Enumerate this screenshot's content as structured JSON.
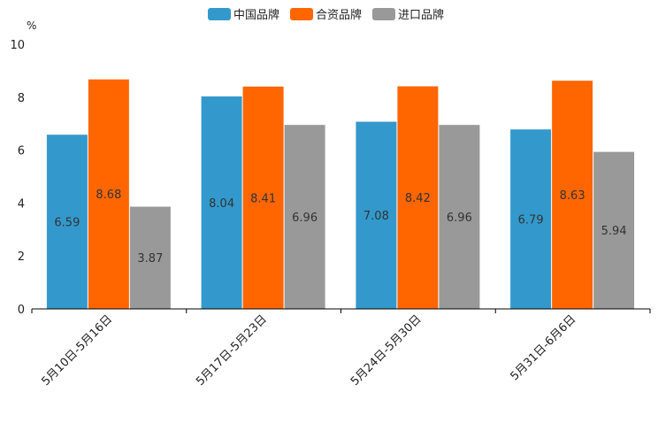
{
  "chart_data": {
    "type": "bar",
    "title": "",
    "ylabel": "%",
    "xlabel": "",
    "ylim": [
      0,
      10
    ],
    "yticks": [
      0,
      2,
      4,
      6,
      8,
      10
    ],
    "legend_position": "top-center",
    "categories": [
      "5月10日-5月16日",
      "5月17日-5月23日",
      "5月24日-5月30日",
      "5月31日-6月6日"
    ],
    "series": [
      {
        "name": "中国品牌",
        "color": "#3399CC",
        "values": [
          6.59,
          8.04,
          7.08,
          6.79
        ],
        "labels": [
          "6.59",
          "8.04",
          "7.08",
          "6.79"
        ]
      },
      {
        "name": "合资品牌",
        "color": "#FF6600",
        "values": [
          8.68,
          8.41,
          8.42,
          8.63
        ],
        "labels": [
          "8.68",
          "8.41",
          "8.42",
          "8.63"
        ]
      },
      {
        "name": "进口品牌",
        "color": "#999999",
        "values": [
          3.87,
          6.96,
          6.96,
          5.94
        ],
        "labels": [
          "3.87",
          "6.96",
          "6.96",
          "5.94"
        ]
      }
    ]
  }
}
